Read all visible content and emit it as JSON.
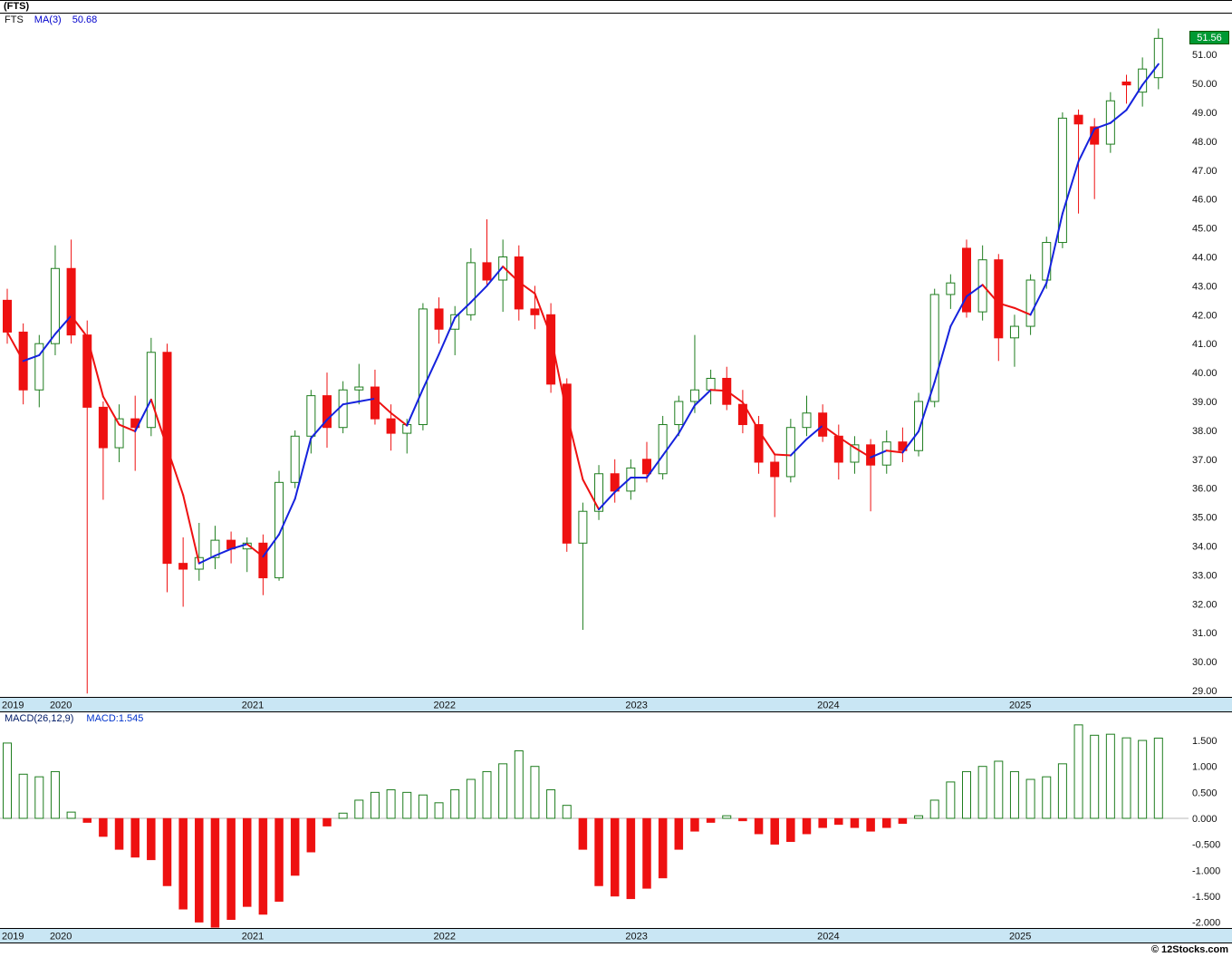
{
  "window_title": "(FTS)",
  "legend": {
    "symbol": "FTS",
    "ma_label": "MA(3)",
    "ma_value": "50.68"
  },
  "macd_legend": {
    "label": "MACD(26,12,9)",
    "value": "MACD:1.545"
  },
  "last_price_badge": "51.56",
  "watermark": "© 12Stocks.com",
  "colors": {
    "candle_up": "#1e7d1e",
    "candle_down": "#ee1111",
    "ma_up": "#1522dd",
    "ma_down": "#ee1111",
    "axis_band": "#c9e6f4",
    "badge_bg": "#009933",
    "badge_text": "#ffffff",
    "macd_pos": "#1e7d1e",
    "macd_neg": "#ee1111",
    "zero_line": "#b9b9b9",
    "separator": "#000000"
  },
  "chart_data": [
    {
      "type": "candlestick",
      "symbol": "FTS",
      "interval": "monthly",
      "start_month": "2019-10",
      "last_price": 51.56,
      "ylim": [
        28.6,
        51.9
      ],
      "y_axis": {
        "min": 29,
        "max": 51,
        "step": 1
      },
      "x_year_ticks": [
        {
          "label": "2019",
          "index": 0
        },
        {
          "label": "2020",
          "index": 3
        },
        {
          "label": "2021",
          "index": 15
        },
        {
          "label": "2022",
          "index": 27
        },
        {
          "label": "2023",
          "index": 39
        },
        {
          "label": "2024",
          "index": 51
        },
        {
          "label": "2025",
          "index": 63
        }
      ],
      "ma_overlay": {
        "label": "MA(3)",
        "period": 3,
        "last_value": 50.68,
        "up_color": "#1522dd",
        "down_color": "#ee1111"
      },
      "ohlc": [
        [
          42.5,
          42.9,
          41.0,
          41.4
        ],
        [
          41.4,
          41.7,
          38.9,
          39.4
        ],
        [
          39.4,
          41.3,
          38.8,
          41.0
        ],
        [
          41.0,
          44.4,
          40.6,
          43.6
        ],
        [
          43.6,
          44.6,
          41.0,
          41.3
        ],
        [
          41.3,
          41.8,
          28.9,
          38.8
        ],
        [
          38.8,
          39.0,
          35.6,
          37.4
        ],
        [
          37.4,
          38.9,
          36.9,
          38.4
        ],
        [
          38.4,
          39.2,
          36.6,
          38.1
        ],
        [
          38.1,
          41.2,
          37.8,
          40.7
        ],
        [
          40.7,
          41.0,
          32.4,
          33.4
        ],
        [
          33.4,
          34.3,
          31.9,
          33.2
        ],
        [
          33.2,
          34.8,
          32.8,
          33.6
        ],
        [
          33.6,
          34.7,
          33.2,
          34.2
        ],
        [
          34.2,
          34.5,
          33.4,
          33.9
        ],
        [
          33.9,
          34.3,
          33.1,
          34.1
        ],
        [
          34.1,
          34.4,
          32.3,
          32.9
        ],
        [
          32.9,
          36.6,
          32.8,
          36.2
        ],
        [
          36.2,
          38.0,
          36.0,
          37.8
        ],
        [
          37.8,
          39.4,
          37.2,
          39.2
        ],
        [
          39.2,
          40.0,
          37.4,
          38.1
        ],
        [
          38.1,
          39.7,
          37.9,
          39.4
        ],
        [
          39.4,
          40.3,
          38.9,
          39.5
        ],
        [
          39.5,
          40.1,
          38.2,
          38.4
        ],
        [
          38.4,
          38.9,
          37.3,
          37.9
        ],
        [
          37.9,
          38.4,
          37.2,
          38.2
        ],
        [
          38.2,
          42.4,
          38.0,
          42.2
        ],
        [
          42.2,
          42.6,
          41.0,
          41.5
        ],
        [
          41.5,
          42.3,
          40.6,
          42.0
        ],
        [
          42.0,
          44.3,
          41.8,
          43.8
        ],
        [
          43.8,
          45.3,
          43.0,
          43.2
        ],
        [
          43.2,
          44.6,
          42.1,
          44.0
        ],
        [
          44.0,
          44.4,
          41.8,
          42.2
        ],
        [
          42.2,
          43.0,
          41.5,
          42.0
        ],
        [
          42.0,
          42.4,
          39.3,
          39.6
        ],
        [
          39.6,
          39.8,
          33.8,
          34.1
        ],
        [
          34.1,
          35.5,
          31.1,
          35.2
        ],
        [
          35.2,
          36.8,
          34.9,
          36.5
        ],
        [
          36.5,
          37.0,
          35.5,
          35.9
        ],
        [
          35.9,
          37.0,
          35.6,
          36.7
        ],
        [
          37.0,
          37.6,
          36.2,
          36.5
        ],
        [
          36.5,
          38.5,
          36.3,
          38.2
        ],
        [
          38.2,
          39.2,
          37.8,
          39.0
        ],
        [
          39.0,
          41.3,
          38.6,
          39.4
        ],
        [
          39.4,
          40.1,
          38.9,
          39.8
        ],
        [
          39.8,
          40.2,
          38.7,
          38.9
        ],
        [
          38.9,
          39.4,
          37.9,
          38.2
        ],
        [
          38.2,
          38.5,
          36.5,
          36.9
        ],
        [
          36.9,
          37.2,
          35.0,
          36.4
        ],
        [
          36.4,
          38.4,
          36.2,
          38.1
        ],
        [
          38.1,
          39.2,
          37.8,
          38.6
        ],
        [
          38.6,
          38.9,
          37.6,
          37.8
        ],
        [
          37.8,
          38.2,
          36.3,
          36.9
        ],
        [
          36.9,
          37.8,
          36.5,
          37.5
        ],
        [
          37.5,
          37.7,
          35.2,
          36.8
        ],
        [
          36.8,
          38.0,
          36.5,
          37.6
        ],
        [
          37.6,
          38.1,
          36.9,
          37.3
        ],
        [
          37.3,
          39.3,
          37.1,
          39.0
        ],
        [
          39.0,
          42.9,
          38.8,
          42.7
        ],
        [
          42.7,
          43.4,
          42.2,
          43.1
        ],
        [
          44.3,
          44.6,
          41.9,
          42.1
        ],
        [
          42.1,
          44.4,
          41.8,
          43.9
        ],
        [
          43.9,
          44.1,
          40.4,
          41.2
        ],
        [
          41.2,
          42.0,
          40.2,
          41.6
        ],
        [
          41.6,
          43.4,
          41.3,
          43.2
        ],
        [
          43.2,
          44.7,
          42.9,
          44.5
        ],
        [
          44.5,
          49.0,
          44.3,
          48.8
        ],
        [
          48.9,
          49.1,
          45.5,
          48.6
        ],
        [
          48.5,
          48.8,
          46.0,
          47.9
        ],
        [
          47.9,
          49.7,
          47.6,
          49.4
        ],
        [
          50.05,
          50.3,
          49.3,
          49.95
        ],
        [
          49.7,
          50.9,
          49.2,
          50.5
        ],
        [
          50.2,
          51.9,
          49.8,
          51.56
        ]
      ]
    },
    {
      "type": "bar",
      "name": "MACD(26,12,9) histogram",
      "last_value": 1.545,
      "ylim": [
        -2.35,
        1.95
      ],
      "y_ticks": [
        1.5,
        1.0,
        0.5,
        0.0,
        -0.5,
        -1.0,
        -1.5,
        -2.0
      ],
      "values": [
        1.45,
        0.85,
        0.8,
        0.9,
        0.12,
        -0.08,
        -0.35,
        -0.6,
        -0.75,
        -0.8,
        -1.3,
        -1.75,
        -2.0,
        -2.1,
        -1.95,
        -1.7,
        -1.85,
        -1.6,
        -1.1,
        -0.65,
        -0.15,
        0.1,
        0.35,
        0.5,
        0.55,
        0.5,
        0.45,
        0.3,
        0.55,
        0.75,
        0.9,
        1.05,
        1.3,
        1.0,
        0.55,
        0.25,
        -0.6,
        -1.3,
        -1.5,
        -1.55,
        -1.35,
        -1.15,
        -0.6,
        -0.25,
        -0.08,
        0.05,
        -0.05,
        -0.3,
        -0.5,
        -0.45,
        -0.3,
        -0.18,
        -0.12,
        -0.18,
        -0.25,
        -0.18,
        -0.1,
        0.05,
        0.35,
        0.7,
        0.9,
        1.0,
        1.1,
        0.9,
        0.75,
        0.8,
        1.05,
        1.8,
        1.6,
        1.62,
        1.55,
        1.5,
        1.545
      ]
    }
  ]
}
